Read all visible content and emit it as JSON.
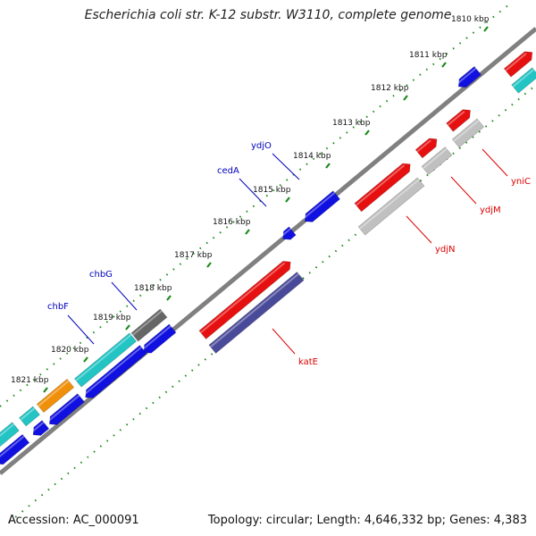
{
  "title": "Escherichia coli str. K-12 substr. W3110, complete genome",
  "footer": {
    "accession": "Accession: AC_000091",
    "summary": "Topology: circular; Length: 4,646,332 bp; Genes: 4,383"
  },
  "colors": {
    "backbone": "#7a7a7a",
    "ticks": "#1a8a1a",
    "forward_gene": "#e61010",
    "forward_grey": "#c0c0c0",
    "reverse_gene": "#1010e0",
    "cyan_gene": "#22c4c4",
    "orange_gene": "#f0900a",
    "dark_grey_gene": "#666666",
    "purple_gene": "#4a4a9a",
    "label_forward": "#dd0000",
    "label_reverse": "#0000bb"
  },
  "scale": {
    "unit": "kbp",
    "tick_labels": [
      "1810 kbp",
      "1811 kbp",
      "1812 kbp",
      "1813 kbp",
      "1814 kbp",
      "1815 kbp",
      "1816 kbp",
      "1817 kbp",
      "1818 kbp",
      "1819 kbp",
      "1820 kbp",
      "1821 kbp"
    ]
  },
  "gene_labels": {
    "forward": [
      "yniC",
      "ydjM",
      "ydjN",
      "katE"
    ],
    "reverse": [
      "ydjO",
      "cedA",
      "chbG",
      "chbF"
    ]
  }
}
